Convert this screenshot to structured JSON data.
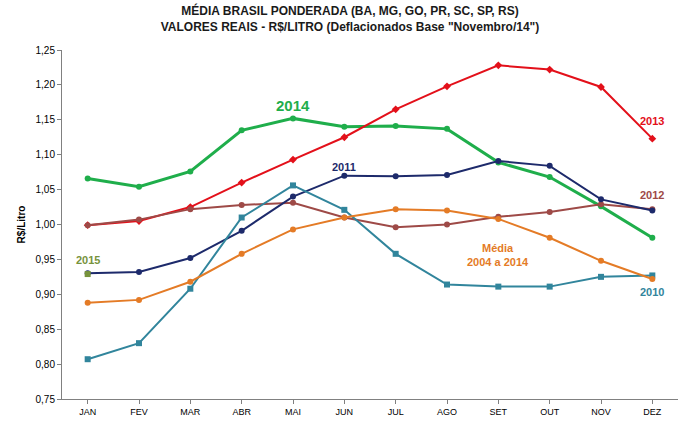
{
  "chart_data": {
    "type": "line",
    "title": "MÉDIA BRASIL PONDERADA (BA, MG, GO, PR, SC, SP, RS)",
    "subtitle": "VALORES REAIS - R$/LITRO (Deflacionados Base \"Novembro/14\")",
    "y_label": "R$/Litro",
    "categories": [
      "JAN",
      "FEV",
      "MAR",
      "ABR",
      "MAI",
      "JUN",
      "JUL",
      "AGO",
      "SET",
      "OUT",
      "NOV",
      "DEZ"
    ],
    "series": [
      {
        "name": "2014",
        "color": "#1fae4b",
        "marker": "circle",
        "values": [
          1.066,
          1.054,
          1.076,
          1.135,
          1.152,
          1.14,
          1.141,
          1.137,
          1.089,
          1.068,
          1.026,
          0.981
        ],
        "label": {
          "x": "MAI",
          "y": 1.17
        }
      },
      {
        "name": "2013",
        "color": "#e3101a",
        "marker": "diamond",
        "values": [
          0.999,
          1.005,
          1.025,
          1.06,
          1.093,
          1.125,
          1.165,
          1.198,
          1.228,
          1.222,
          1.197,
          1.123
        ],
        "label": {
          "x": "DEZ",
          "y": 1.148
        }
      },
      {
        "name": "2012",
        "color": "#9e4a47",
        "marker": "circle",
        "values": [
          0.999,
          1.007,
          1.022,
          1.028,
          1.031,
          1.01,
          0.996,
          1.0,
          1.011,
          1.018,
          1.029,
          1.022
        ],
        "label": {
          "x": "DEZ",
          "y": 1.042
        }
      },
      {
        "name": "2011",
        "color": "#1d2a6b",
        "marker": "circle",
        "values": [
          0.93,
          0.932,
          0.952,
          0.991,
          1.04,
          1.07,
          1.069,
          1.071,
          1.091,
          1.084,
          1.036,
          1.02
        ],
        "label": {
          "x": "JUN",
          "y": 1.082
        }
      },
      {
        "name": "2010",
        "color": "#31859c",
        "marker": "square",
        "values": [
          0.807,
          0.83,
          0.908,
          1.01,
          1.056,
          1.021,
          0.958,
          0.914,
          0.911,
          0.911,
          0.925,
          0.927
        ],
        "label": {
          "x": "DEZ",
          "y": 0.903
        }
      },
      {
        "name": "Média 2004 a 2014",
        "color": "#e47b26",
        "marker": "circle",
        "values": [
          0.888,
          0.892,
          0.918,
          0.958,
          0.993,
          1.01,
          1.022,
          1.02,
          1.008,
          0.981,
          0.948,
          0.922
        ],
        "label": {
          "x": "SET",
          "y": 0.957
        }
      },
      {
        "name": "2015",
        "color": "#77933c",
        "marker": "square",
        "values": [
          0.929,
          null,
          null,
          null,
          null,
          null,
          null,
          null,
          null,
          null,
          null,
          null
        ],
        "label": {
          "x": "JAN",
          "y": 0.949
        }
      }
    ],
    "ylim": [
      0.75,
      1.25
    ],
    "yticks": [
      {
        "value": 0.75,
        "label": "0,75"
      },
      {
        "value": 0.8,
        "label": "0,80"
      },
      {
        "value": 0.85,
        "label": "0,85"
      },
      {
        "value": 0.9,
        "label": "0,90"
      },
      {
        "value": 0.95,
        "label": "0,95"
      },
      {
        "value": 1.0,
        "label": "1,00"
      },
      {
        "value": 1.05,
        "label": "1,05"
      },
      {
        "value": 1.1,
        "label": "1,10"
      },
      {
        "value": 1.15,
        "label": "1,15"
      },
      {
        "value": 1.2,
        "label": "1,20"
      },
      {
        "value": 1.25,
        "label": "1,25"
      }
    ],
    "grid": false
  }
}
